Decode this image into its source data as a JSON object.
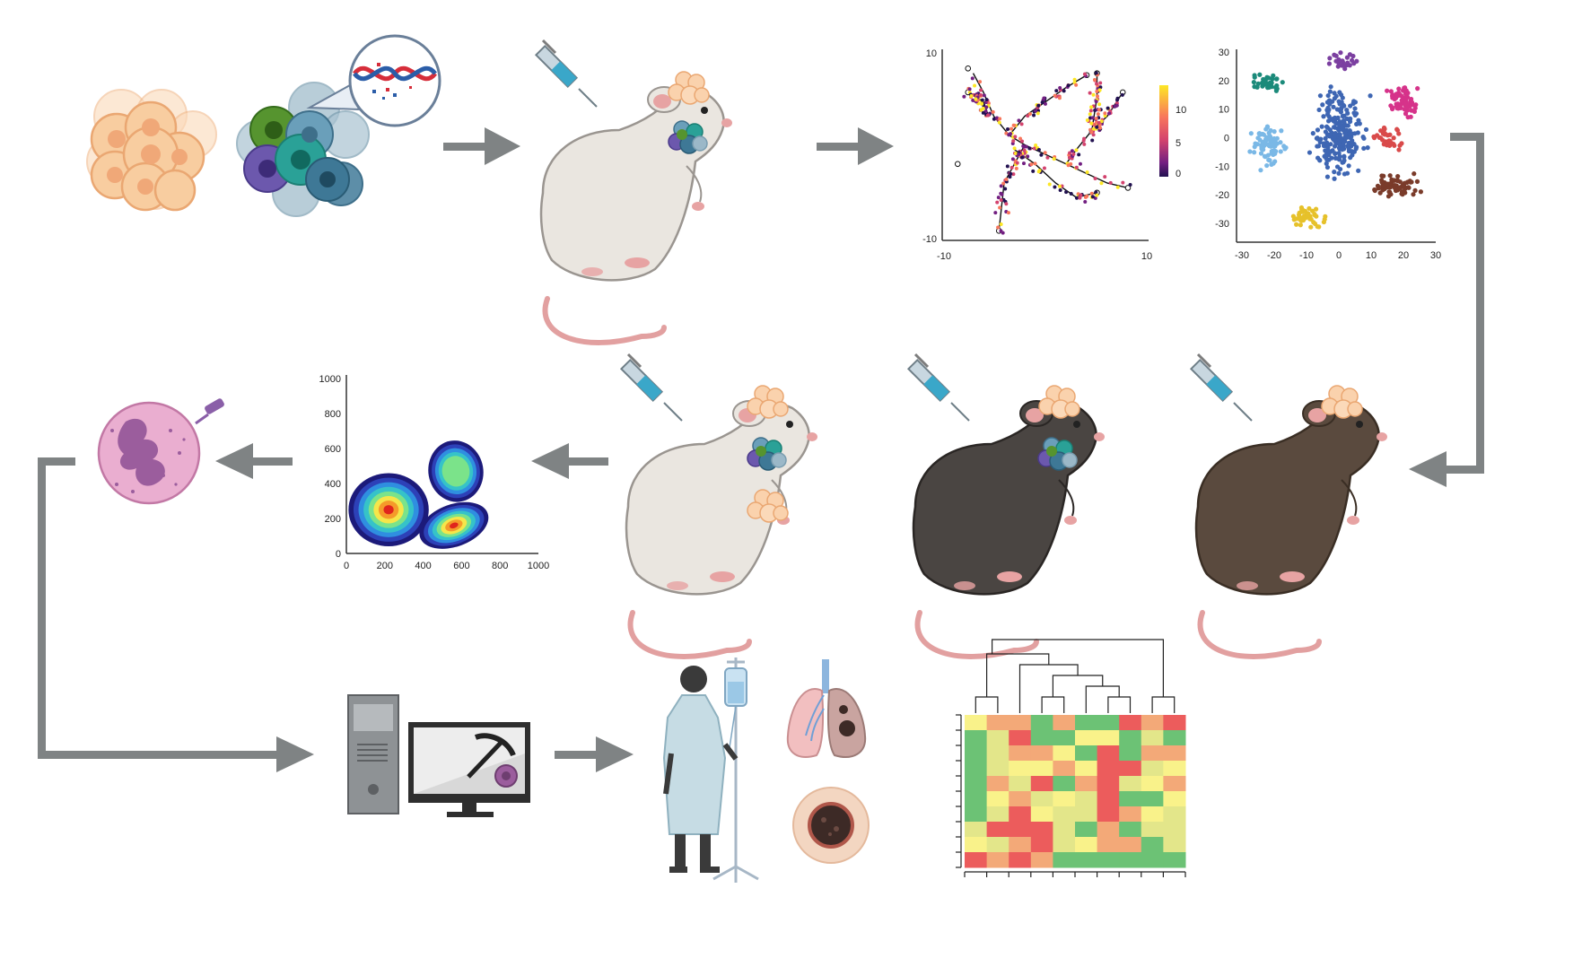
{
  "figure": {
    "arrow_color": "#7f8384",
    "panels": [
      {
        "id": "tumor-cells",
        "icon": "tumor-cell-cluster-icon"
      },
      {
        "id": "crispr-modified-cells",
        "icon": "dna-edit-icon"
      },
      {
        "id": "injection-nude-mouse",
        "icon": "syringe-mouse-icon"
      },
      {
        "id": "trajectory-plot",
        "icon": "trajectory-chart"
      },
      {
        "id": "tsne-plot",
        "icon": "tsne-chart"
      },
      {
        "id": "injection-black-mouse-single",
        "icon": "syringe-mouse-icon"
      },
      {
        "id": "injection-black-mouse-double",
        "icon": "syringe-mouse-icon"
      },
      {
        "id": "injection-nude-mouse-triple",
        "icon": "syringe-mouse-icon"
      },
      {
        "id": "flow-cytometry-plot",
        "icon": "density-scatter-chart"
      },
      {
        "id": "neutrophil",
        "icon": "neutrophil-cell-icon"
      },
      {
        "id": "computer-mining",
        "icon": "computer-pickaxe-icon"
      },
      {
        "id": "patient-iv",
        "icon": "patient-iv-drip-icon"
      },
      {
        "id": "lungs-tumor",
        "icon": "lungs-icon"
      },
      {
        "id": "heatmap",
        "icon": "clustered-heatmap-chart"
      }
    ]
  },
  "chart_data": [
    {
      "type": "line",
      "name": "trajectory",
      "xlim": [
        -10,
        10
      ],
      "ylim": [
        -10,
        10
      ],
      "x_ticks": [
        "-10",
        "10"
      ],
      "y_ticks": [
        "10",
        "-10"
      ],
      "colorbar": {
        "ticks": [
          "10",
          "5",
          "0"
        ],
        "colors": [
          "#fde725",
          "#f8765c",
          "#d3436e",
          "#721f81",
          "#221150"
        ]
      }
    },
    {
      "type": "scatter",
      "name": "tsne",
      "xlim": [
        -30,
        30
      ],
      "ylim": [
        -35,
        30
      ],
      "x_ticks": [
        "-30",
        "-20",
        "-10",
        "0",
        "10",
        "20",
        "30"
      ],
      "y_ticks": [
        "30",
        "20",
        "10",
        "0",
        "-10",
        "-20",
        "-30"
      ],
      "clusters": [
        {
          "color": "#1b8a7a",
          "center": [
            -22,
            19
          ]
        },
        {
          "color": "#7b3fa0",
          "center": [
            2,
            27
          ]
        },
        {
          "color": "#d6338a",
          "center": [
            20,
            13
          ]
        },
        {
          "color": "#d94a4a",
          "center": [
            15,
            0
          ]
        },
        {
          "color": "#3e66b3",
          "center": [
            0,
            2
          ]
        },
        {
          "color": "#7ab8e6",
          "center": [
            -22,
            -3
          ]
        },
        {
          "color": "#7a3b2a",
          "center": [
            18,
            -17
          ]
        },
        {
          "color": "#e6c12a",
          "center": [
            -10,
            -28
          ]
        }
      ]
    },
    {
      "type": "scatter",
      "name": "flow-cytometry-density",
      "xlim": [
        0,
        1000
      ],
      "ylim": [
        0,
        1000
      ],
      "x_ticks": [
        "0",
        "200",
        "400",
        "600",
        "800",
        "1000"
      ],
      "y_ticks": [
        "1000",
        "800",
        "600",
        "400",
        "200",
        "0"
      ],
      "populations": [
        {
          "center": [
            220,
            250
          ]
        },
        {
          "center": [
            570,
            470
          ]
        },
        {
          "center": [
            560,
            160
          ]
        }
      ]
    },
    {
      "type": "heatmap",
      "name": "clustered-heatmap",
      "rows": 10,
      "cols": 10,
      "palette": [
        "#6cc275",
        "#e3e68a",
        "#f3a978",
        "#ec5c5c",
        "#f9f28a"
      ],
      "values": [
        [
          4,
          2,
          2,
          0,
          2,
          0,
          0,
          3,
          2,
          3
        ],
        [
          0,
          1,
          3,
          0,
          0,
          4,
          4,
          0,
          1,
          0
        ],
        [
          0,
          1,
          2,
          2,
          4,
          0,
          3,
          0,
          2,
          2
        ],
        [
          0,
          1,
          4,
          4,
          2,
          4,
          3,
          3,
          1,
          4
        ],
        [
          0,
          2,
          1,
          3,
          0,
          2,
          3,
          1,
          4,
          2
        ],
        [
          0,
          4,
          2,
          1,
          4,
          1,
          3,
          0,
          0,
          4
        ],
        [
          0,
          1,
          3,
          4,
          1,
          1,
          3,
          2,
          4,
          1
        ],
        [
          1,
          3,
          3,
          3,
          1,
          0,
          2,
          0,
          1,
          1
        ],
        [
          4,
          1,
          2,
          3,
          1,
          4,
          2,
          2,
          0,
          1
        ],
        [
          3,
          2,
          3,
          2,
          0,
          0,
          0,
          0,
          0,
          0
        ]
      ]
    }
  ]
}
